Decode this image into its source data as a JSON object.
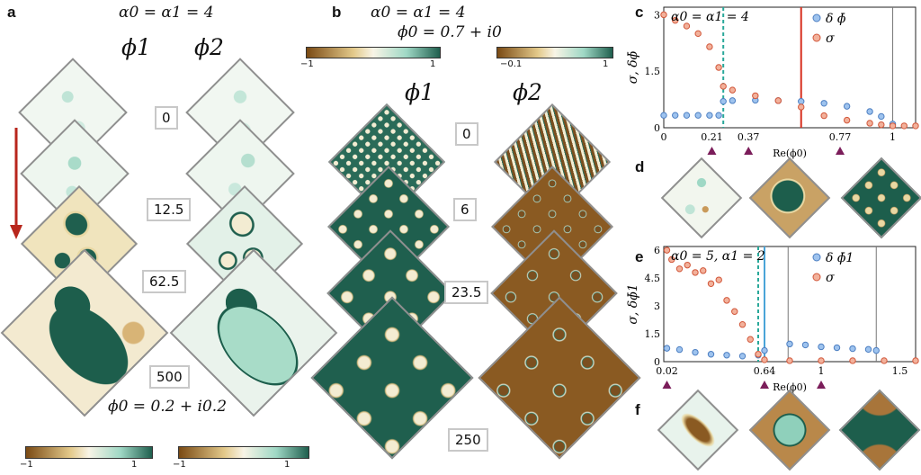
{
  "panels": {
    "a": {
      "label": "a",
      "equation": "α0 = α1 = 4",
      "phi1": "ϕ1",
      "phi2": "ϕ2",
      "times": [
        "0",
        "12.5",
        "62.5",
        "500"
      ],
      "bottom_eq": "ϕ0 = 0.2 + i0.2",
      "cb1_min": "−1",
      "cb1_max": "1",
      "cb2_min": "−1",
      "cb2_max": "1"
    },
    "b": {
      "label": "b",
      "equation1": "α0 = α1 = 4",
      "equation2": "ϕ0 = 0.7 + i0",
      "phi1": "ϕ1",
      "phi2": "ϕ2",
      "times": [
        "0",
        "6",
        "23.5",
        "250"
      ],
      "cb1_min": "−1",
      "cb1_max": "1",
      "cb2_min": "−0.1",
      "cb2_max": "1"
    },
    "c": {
      "label": "c"
    },
    "d": {
      "label": "d"
    },
    "e": {
      "label": "e"
    },
    "f": {
      "label": "f"
    }
  },
  "colors": {
    "brown": "#8a5a22",
    "cream": "#f6efd6",
    "green": "#1e5f4e",
    "red": "#cc2a1e",
    "blue": "#5b8fd0",
    "orange": "#e27a5a"
  },
  "chart_data": [
    {
      "panel": "c",
      "type": "scatter",
      "title": "α0 = α1 = 4",
      "xlabel": "Re(ϕ0)",
      "ylabel": "σ, δϕ̄",
      "xlim": [
        0,
        1.1
      ],
      "ylim": [
        0,
        3.2
      ],
      "xticks": [
        "0",
        "0.21",
        "0.37",
        "0.77",
        "1"
      ],
      "yticks": [
        "0",
        "1.5",
        "3"
      ],
      "markers": [
        0.21,
        0.37,
        0.77
      ],
      "vlines": [
        {
          "x": 0.26,
          "style": "dashed",
          "color": "teal"
        },
        {
          "x": 0.6,
          "style": "solid",
          "color": "red"
        },
        {
          "x": 1.0,
          "style": "solid",
          "color": "gray"
        }
      ],
      "legend": "top-right",
      "series": [
        {
          "name": "δ ϕ̄",
          "x": [
            0,
            0.05,
            0.1,
            0.15,
            0.2,
            0.24,
            0.26,
            0.3,
            0.4,
            0.5,
            0.6,
            0.7,
            0.8,
            0.9,
            0.95,
            1.0
          ],
          "values": [
            0.33,
            0.33,
            0.33,
            0.33,
            0.33,
            0.33,
            0.7,
            0.72,
            0.73,
            0.72,
            0.7,
            0.65,
            0.57,
            0.43,
            0.3,
            0.1
          ]
        },
        {
          "name": "σ",
          "x": [
            0,
            0.05,
            0.1,
            0.15,
            0.2,
            0.24,
            0.26,
            0.3,
            0.4,
            0.5,
            0.6,
            0.7,
            0.8,
            0.9,
            0.95,
            1.0,
            1.05,
            1.1
          ],
          "values": [
            3.0,
            2.85,
            2.7,
            2.5,
            2.15,
            1.6,
            1.1,
            1.0,
            0.85,
            0.72,
            0.55,
            0.32,
            0.2,
            0.12,
            0.08,
            0.05,
            0.05,
            0.05
          ]
        }
      ]
    },
    {
      "panel": "e",
      "type": "scatter",
      "title": "α0 = 5,  α1 = 2",
      "xlabel": "Re(ϕ0)",
      "ylabel": "σ, δϕ̄1",
      "xlim": [
        0,
        1.6
      ],
      "ylim": [
        0,
        6.2
      ],
      "xticks": [
        "0.02",
        "0.64",
        "1",
        "1.5"
      ],
      "yticks": [
        "0",
        "1.5",
        "3",
        "4.5",
        "6"
      ],
      "markers": [
        0.02,
        0.64,
        1.0
      ],
      "vlines": [
        {
          "x": 0.6,
          "style": "dashed",
          "color": "teal"
        },
        {
          "x": 0.64,
          "style": "solid",
          "color": "blue"
        },
        {
          "x": 0.79,
          "style": "solid",
          "color": "gray"
        },
        {
          "x": 1.35,
          "style": "solid",
          "color": "gray"
        }
      ],
      "legend": "top-right",
      "series": [
        {
          "name": "δ ϕ̄1",
          "x": [
            0.02,
            0.1,
            0.2,
            0.3,
            0.4,
            0.5,
            0.6,
            0.64,
            0.8,
            0.9,
            1.0,
            1.1,
            1.2,
            1.3,
            1.35
          ],
          "values": [
            0.72,
            0.65,
            0.5,
            0.4,
            0.35,
            0.3,
            0.35,
            0.6,
            0.95,
            0.9,
            0.8,
            0.75,
            0.7,
            0.66,
            0.6
          ]
        },
        {
          "name": "σ",
          "x": [
            0.02,
            0.05,
            0.1,
            0.15,
            0.2,
            0.25,
            0.3,
            0.35,
            0.4,
            0.45,
            0.5,
            0.55,
            0.6,
            0.64,
            0.8,
            1.0,
            1.2,
            1.4,
            1.6
          ],
          "values": [
            6.0,
            5.5,
            5.0,
            5.2,
            4.8,
            4.9,
            4.2,
            4.4,
            3.3,
            2.7,
            2.0,
            1.2,
            0.4,
            0.1,
            0.05,
            0.05,
            0.05,
            0.05,
            0.05
          ]
        }
      ]
    }
  ]
}
